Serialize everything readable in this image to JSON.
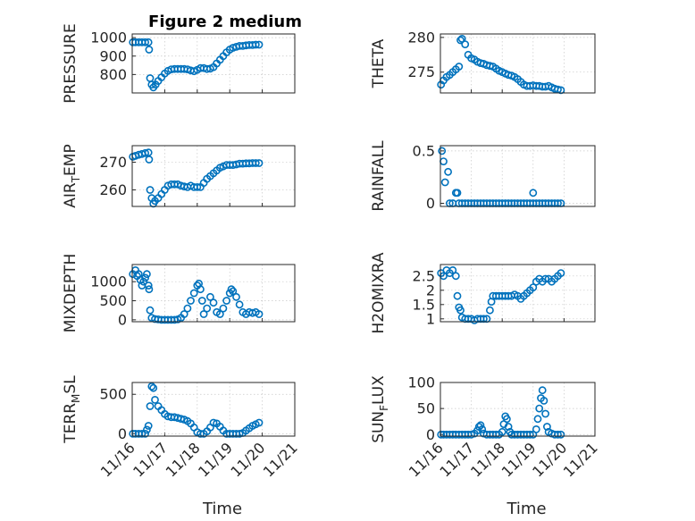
{
  "figure_title": "Figure 2 medium",
  "marker_color": "#0072BD",
  "chart_data": [
    {
      "type": "scatter",
      "id": "pressure",
      "ylabel": "PRESSURE",
      "ylabel_sub": null,
      "ylim": [
        700,
        1020
      ],
      "yticks": [
        800,
        900,
        1000
      ],
      "ytick_labels": [
        "800",
        "900",
        "1000"
      ],
      "xlim": [
        0,
        5
      ],
      "xticks": [
        0,
        1,
        2,
        3,
        4,
        5
      ],
      "xtick_labels": [
        "11/16",
        "11/17",
        "11/18",
        "11/19",
        "11/20",
        "11/21"
      ],
      "show_xticklabels": false,
      "xlabel": "",
      "x": [
        0.02,
        0.1,
        0.2,
        0.3,
        0.4,
        0.5,
        0.52,
        0.55,
        0.6,
        0.65,
        0.72,
        0.8,
        0.9,
        1.0,
        1.1,
        1.2,
        1.3,
        1.4,
        1.5,
        1.6,
        1.7,
        1.8,
        1.9,
        2.0,
        2.1,
        2.2,
        2.3,
        2.4,
        2.5,
        2.6,
        2.7,
        2.8,
        2.9,
        3.0,
        3.1,
        3.2,
        3.3,
        3.4,
        3.5,
        3.6,
        3.7,
        3.8,
        3.9
      ],
      "y": [
        975,
        975,
        975,
        975,
        975,
        975,
        935,
        780,
        745,
        730,
        745,
        765,
        785,
        805,
        820,
        828,
        830,
        830,
        830,
        830,
        828,
        822,
        818,
        825,
        835,
        835,
        830,
        832,
        840,
        860,
        880,
        900,
        920,
        935,
        945,
        950,
        955,
        955,
        958,
        960,
        960,
        962,
        962
      ]
    },
    {
      "type": "scatter",
      "id": "theta",
      "ylabel": "THETA",
      "ylabel_sub": null,
      "ylim": [
        272,
        280.5
      ],
      "yticks": [
        275,
        280
      ],
      "ytick_labels": [
        "275",
        "280"
      ],
      "xlim": [
        0,
        5
      ],
      "xticks": [
        0,
        1,
        2,
        3,
        4,
        5
      ],
      "xtick_labels": [
        "11/16",
        "11/17",
        "11/18",
        "11/19",
        "11/20",
        "11/21"
      ],
      "show_xticklabels": false,
      "xlabel": "",
      "x": [
        0.02,
        0.1,
        0.2,
        0.3,
        0.4,
        0.5,
        0.6,
        0.65,
        0.7,
        0.8,
        0.9,
        1.0,
        1.1,
        1.2,
        1.3,
        1.4,
        1.5,
        1.6,
        1.7,
        1.8,
        1.9,
        2.0,
        2.1,
        2.2,
        2.3,
        2.4,
        2.5,
        2.6,
        2.7,
        2.8,
        2.9,
        3.0,
        3.1,
        3.2,
        3.3,
        3.4,
        3.5,
        3.6,
        3.7,
        3.8,
        3.9
      ],
      "y": [
        273.2,
        273.8,
        274.3,
        274.6,
        275.0,
        275.4,
        275.8,
        279.6,
        279.8,
        279.0,
        277.5,
        277.0,
        276.8,
        276.5,
        276.3,
        276.2,
        276.0,
        275.9,
        275.8,
        275.5,
        275.2,
        275.0,
        274.8,
        274.6,
        274.5,
        274.3,
        274.0,
        273.6,
        273.2,
        273.0,
        273.0,
        273.1,
        273.0,
        273.0,
        272.9,
        272.9,
        273.0,
        272.8,
        272.6,
        272.5,
        272.4
      ]
    },
    {
      "type": "scatter",
      "id": "air_temp",
      "ylabel": "AIR",
      "ylabel_sub": "T",
      "ylabel_suffix": "EMP",
      "ylim": [
        254,
        276
      ],
      "yticks": [
        260,
        270
      ],
      "ytick_labels": [
        "260",
        "270"
      ],
      "xlim": [
        0,
        5
      ],
      "xticks": [
        0,
        1,
        2,
        3,
        4,
        5
      ],
      "xtick_labels": [
        "11/16",
        "11/17",
        "11/18",
        "11/19",
        "11/20",
        "11/21"
      ],
      "show_xticklabels": false,
      "xlabel": "",
      "x": [
        0.02,
        0.1,
        0.2,
        0.3,
        0.4,
        0.5,
        0.52,
        0.55,
        0.6,
        0.65,
        0.7,
        0.8,
        0.9,
        1.0,
        1.1,
        1.2,
        1.3,
        1.4,
        1.5,
        1.6,
        1.7,
        1.8,
        1.9,
        2.0,
        2.1,
        2.2,
        2.3,
        2.4,
        2.5,
        2.6,
        2.7,
        2.8,
        2.9,
        3.0,
        3.1,
        3.2,
        3.3,
        3.4,
        3.5,
        3.6,
        3.7,
        3.8,
        3.9
      ],
      "y": [
        272,
        272.3,
        272.7,
        273,
        273.3,
        273.5,
        271,
        260,
        257,
        255,
        256,
        257,
        258.5,
        260,
        261.5,
        262,
        262,
        262,
        261.5,
        261.2,
        261,
        261.5,
        261,
        261,
        261,
        262.5,
        264,
        265,
        266,
        267,
        268,
        268.5,
        269,
        269,
        269,
        269.2,
        269.5,
        269.5,
        269.6,
        269.6,
        269.7,
        269.7,
        269.7
      ]
    },
    {
      "type": "scatter",
      "id": "rainfall",
      "ylabel": "RAINFALL",
      "ylabel_sub": null,
      "ylim": [
        -0.03,
        0.55
      ],
      "yticks": [
        0,
        0.5
      ],
      "ytick_labels": [
        "0",
        "0.5"
      ],
      "xlim": [
        0,
        5
      ],
      "xticks": [
        0,
        1,
        2,
        3,
        4,
        5
      ],
      "xtick_labels": [
        "11/16",
        "11/17",
        "11/18",
        "11/19",
        "11/20",
        "11/21"
      ],
      "show_xticklabels": false,
      "xlabel": "",
      "x": [
        0.05,
        0.1,
        0.15,
        0.25,
        0.5,
        0.55,
        0.3,
        0.4,
        0.6,
        0.7,
        0.8,
        0.9,
        1.0,
        1.1,
        1.2,
        1.3,
        1.4,
        1.5,
        1.6,
        1.7,
        1.8,
        1.9,
        2.0,
        2.1,
        2.2,
        2.3,
        2.4,
        2.5,
        2.6,
        2.7,
        2.8,
        2.9,
        3.0,
        3.1,
        3.2,
        3.3,
        3.4,
        3.5,
        3.6,
        3.7,
        3.8,
        3.9,
        3.0
      ],
      "y": [
        0.5,
        0.4,
        0.2,
        0.3,
        0.1,
        0.1,
        0,
        0,
        0,
        0,
        0,
        0,
        0,
        0,
        0,
        0,
        0,
        0,
        0,
        0,
        0,
        0,
        0,
        0,
        0,
        0,
        0,
        0,
        0,
        0,
        0,
        0,
        0,
        0,
        0,
        0,
        0,
        0,
        0,
        0,
        0,
        0,
        0.1
      ]
    },
    {
      "type": "scatter",
      "id": "mixdepth",
      "ylabel": "MIXDEPTH",
      "ylabel_sub": null,
      "ylim": [
        -50,
        1450
      ],
      "yticks": [
        0,
        500,
        1000
      ],
      "ytick_labels": [
        "0",
        "500",
        "1000"
      ],
      "xlim": [
        0,
        5
      ],
      "xticks": [
        0,
        1,
        2,
        3,
        4,
        5
      ],
      "xtick_labels": [
        "11/16",
        "11/17",
        "11/18",
        "11/19",
        "11/20",
        "11/21"
      ],
      "show_xticklabels": false,
      "xlabel": "",
      "x": [
        0.02,
        0.1,
        0.15,
        0.2,
        0.25,
        0.3,
        0.35,
        0.4,
        0.45,
        0.5,
        0.52,
        0.55,
        0.6,
        0.7,
        0.8,
        0.9,
        1.0,
        1.1,
        1.2,
        1.3,
        1.4,
        1.5,
        1.6,
        1.7,
        1.8,
        1.9,
        2.0,
        2.05,
        2.1,
        2.15,
        2.2,
        2.3,
        2.4,
        2.5,
        2.6,
        2.7,
        2.8,
        2.9,
        3.0,
        3.05,
        3.1,
        3.2,
        3.3,
        3.4,
        3.5,
        3.6,
        3.7,
        3.8,
        3.9
      ],
      "y": [
        1200,
        1300,
        1150,
        1200,
        1050,
        900,
        1000,
        1100,
        1200,
        900,
        800,
        250,
        50,
        20,
        10,
        0,
        0,
        0,
        0,
        0,
        10,
        50,
        150,
        300,
        500,
        700,
        900,
        950,
        800,
        500,
        150,
        300,
        600,
        450,
        200,
        150,
        300,
        500,
        700,
        800,
        750,
        600,
        400,
        200,
        150,
        200,
        180,
        200,
        150
      ]
    },
    {
      "type": "scatter",
      "id": "h2omixra",
      "ylabel": "H2OMIXRA",
      "ylabel_sub": null,
      "ylim": [
        0.9,
        2.9
      ],
      "yticks": [
        1,
        1.5,
        2,
        2.5
      ],
      "ytick_labels": [
        "1",
        "1.5",
        "2",
        "2.5"
      ],
      "xlim": [
        0,
        5
      ],
      "xticks": [
        0,
        1,
        2,
        3,
        4,
        5
      ],
      "xtick_labels": [
        "11/16",
        "11/17",
        "11/18",
        "11/19",
        "11/20",
        "11/21"
      ],
      "show_xticklabels": false,
      "xlabel": "",
      "x": [
        0.02,
        0.1,
        0.2,
        0.3,
        0.4,
        0.5,
        0.55,
        0.6,
        0.65,
        0.7,
        0.8,
        0.9,
        1.0,
        1.1,
        1.2,
        1.3,
        1.4,
        1.5,
        1.6,
        1.65,
        1.7,
        1.8,
        1.9,
        2.0,
        2.1,
        2.2,
        2.3,
        2.4,
        2.5,
        2.6,
        2.7,
        2.8,
        2.9,
        3.0,
        3.1,
        3.2,
        3.3,
        3.4,
        3.5,
        3.6,
        3.7,
        3.8,
        3.9
      ],
      "y": [
        2.6,
        2.5,
        2.7,
        2.6,
        2.7,
        2.5,
        1.8,
        1.4,
        1.3,
        1.05,
        1.0,
        1.0,
        1.0,
        0.95,
        1.0,
        1.0,
        1.0,
        1.0,
        1.3,
        1.6,
        1.8,
        1.8,
        1.8,
        1.8,
        1.8,
        1.8,
        1.8,
        1.85,
        1.8,
        1.7,
        1.8,
        1.9,
        2.0,
        2.1,
        2.3,
        2.4,
        2.3,
        2.4,
        2.4,
        2.3,
        2.4,
        2.5,
        2.6
      ]
    },
    {
      "type": "scatter",
      "id": "terr_msl",
      "ylabel": "TERR",
      "ylabel_sub": "M",
      "ylabel_suffix": "SL",
      "ylim": [
        -30,
        650
      ],
      "yticks": [
        0,
        500
      ],
      "ytick_labels": [
        "0",
        "500"
      ],
      "xlim": [
        0,
        5
      ],
      "xticks": [
        0,
        1,
        2,
        3,
        4,
        5
      ],
      "xtick_labels": [
        "11/16",
        "11/17",
        "11/18",
        "11/19",
        "11/20",
        "11/21"
      ],
      "show_xticklabels": true,
      "xlabel": "Time",
      "x": [
        0.02,
        0.1,
        0.2,
        0.3,
        0.4,
        0.45,
        0.5,
        0.55,
        0.6,
        0.65,
        0.7,
        0.8,
        0.9,
        1.0,
        1.1,
        1.2,
        1.3,
        1.4,
        1.5,
        1.6,
        1.7,
        1.8,
        1.9,
        2.0,
        2.1,
        2.2,
        2.3,
        2.4,
        2.5,
        2.6,
        2.7,
        2.8,
        2.9,
        3.0,
        3.1,
        3.2,
        3.3,
        3.4,
        3.5,
        3.6,
        3.7,
        3.8,
        3.9
      ],
      "y": [
        0,
        0,
        0,
        0,
        0,
        50,
        100,
        350,
        600,
        580,
        430,
        350,
        300,
        250,
        220,
        210,
        210,
        200,
        190,
        180,
        160,
        130,
        80,
        20,
        0,
        0,
        30,
        80,
        140,
        130,
        90,
        40,
        0,
        0,
        0,
        0,
        0,
        10,
        40,
        70,
        100,
        120,
        140
      ]
    },
    {
      "type": "scatter",
      "id": "sun_flux",
      "ylabel": "SUN",
      "ylabel_sub": "F",
      "ylabel_suffix": "LUX",
      "ylim": [
        -3,
        100
      ],
      "yticks": [
        0,
        50,
        100
      ],
      "ytick_labels": [
        "0",
        "50",
        "100"
      ],
      "xlim": [
        0,
        5
      ],
      "xticks": [
        0,
        1,
        2,
        3,
        4,
        5
      ],
      "xtick_labels": [
        "11/16",
        "11/17",
        "11/18",
        "11/19",
        "11/20",
        "11/21"
      ],
      "show_xticklabels": true,
      "xlabel": "Time",
      "x": [
        0.02,
        0.1,
        0.2,
        0.3,
        0.4,
        0.5,
        0.6,
        0.7,
        0.8,
        0.9,
        1.0,
        1.1,
        1.2,
        1.25,
        1.3,
        1.35,
        1.4,
        1.5,
        1.6,
        1.7,
        1.8,
        1.9,
        2.0,
        2.05,
        2.1,
        2.15,
        2.2,
        2.25,
        2.3,
        2.4,
        2.5,
        2.6,
        2.7,
        2.8,
        2.9,
        3.0,
        3.1,
        3.15,
        3.2,
        3.25,
        3.3,
        3.35,
        3.4,
        3.45,
        3.5,
        3.6,
        3.7,
        3.8,
        3.9
      ],
      "y": [
        0,
        0,
        0,
        0,
        0,
        0,
        0,
        0,
        0,
        0,
        0,
        2,
        8,
        15,
        18,
        10,
        2,
        0,
        0,
        0,
        0,
        0,
        5,
        20,
        35,
        30,
        15,
        5,
        0,
        0,
        0,
        0,
        0,
        0,
        0,
        0,
        10,
        30,
        50,
        70,
        85,
        65,
        40,
        15,
        5,
        2,
        0,
        0,
        0
      ]
    }
  ]
}
